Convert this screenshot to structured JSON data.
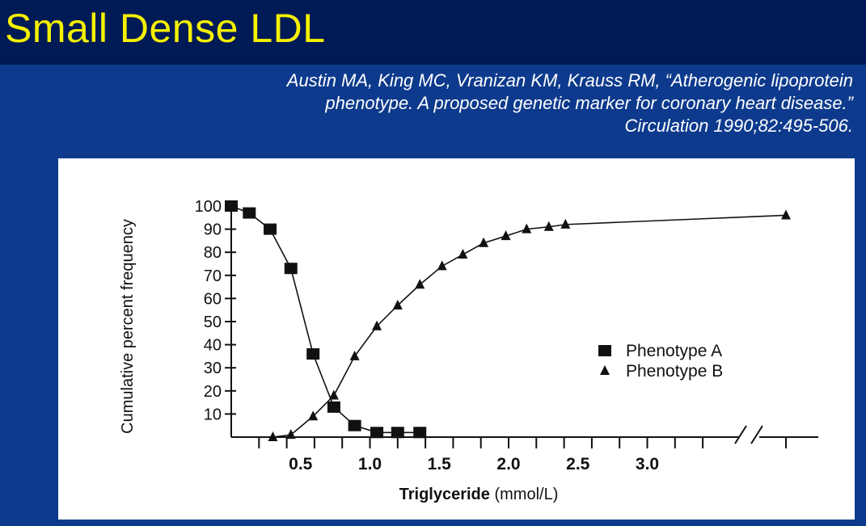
{
  "slide": {
    "title": "Small Dense LDL",
    "citation": [
      "Austin MA, King MC, Vranizan KM, Krauss RM, “Atherogenic lipoprotein",
      "phenotype. A proposed genetic marker for coronary heart disease.”",
      "Circulation 1990;82:495-506."
    ]
  },
  "colors": {
    "title_bar": "#001a55",
    "background": "#0d3a8c",
    "title_text": "#f5f000",
    "panel": "#ffffff"
  },
  "chart_data": {
    "type": "line",
    "xlabel": "Triglyceride",
    "xlabel_unit": "(mmol/L)",
    "ylabel": "Cumulative percent frequency",
    "x_ticks": [
      0.5,
      1.0,
      1.5,
      2.0,
      2.5,
      3.0
    ],
    "x_tick_labels": [
      "0.5",
      "1.0",
      "1.5",
      "2.0",
      "2.5",
      "3.0"
    ],
    "y_ticks": [
      10,
      20,
      30,
      40,
      50,
      60,
      70,
      80,
      90,
      100
    ],
    "y_tick_labels": [
      "10",
      "20",
      "30",
      "40",
      "50",
      "60",
      "70",
      "80",
      "90",
      "100"
    ],
    "xlim": [
      0.0,
      4.0
    ],
    "ylim": [
      0,
      100
    ],
    "axis_break": true,
    "legend_position": "right",
    "series": [
      {
        "name": "Phenotype A",
        "marker": "square",
        "x": [
          0.0,
          0.13,
          0.28,
          0.43,
          0.59,
          0.74,
          0.89,
          1.05,
          1.2,
          1.36
        ],
        "y": [
          100,
          97,
          90,
          73,
          36,
          13,
          5,
          2,
          2,
          2
        ]
      },
      {
        "name": "Phenotype B",
        "marker": "triangle",
        "x": [
          0.3,
          0.43,
          0.59,
          0.74,
          0.89,
          1.05,
          1.2,
          1.36,
          1.52,
          1.67,
          1.82,
          1.98,
          2.13,
          2.29,
          2.41,
          4.0
        ],
        "y": [
          0,
          1,
          9,
          18,
          35,
          48,
          57,
          66,
          74,
          79,
          84,
          87,
          90,
          91,
          92,
          96
        ]
      }
    ]
  }
}
